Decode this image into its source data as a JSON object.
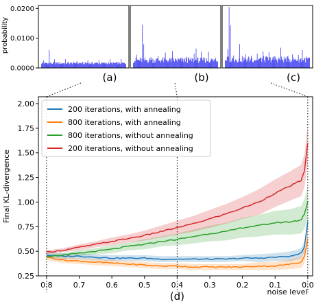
{
  "chart_data": [
    {
      "type": "bar",
      "panel": "(a)",
      "ylabel": "probability",
      "ylim": [
        0,
        0.021
      ],
      "yticks": [
        "0.0000",
        "0.0100",
        "0.0200"
      ],
      "color": "#3b3bef",
      "profile": "flat",
      "peak": 0.006,
      "base": 0.0012
    },
    {
      "type": "bar",
      "panel": "(b)",
      "ylim": [
        0,
        0.021
      ],
      "color": "#3b3bef",
      "profile": "moderate",
      "peak": 0.0145,
      "base": 0.0016
    },
    {
      "type": "bar",
      "panel": "(c)",
      "ylim": [
        0,
        0.021
      ],
      "color": "#3b3bef",
      "profile": "spiky",
      "peak": 0.0205,
      "base": 0.0018
    },
    {
      "type": "line",
      "panel": "(d)",
      "xlabel": "noise level",
      "ylabel": "Final KL-divergence",
      "xlim": [
        0.825,
        -0.015
      ],
      "ylim": [
        0.25,
        2.07
      ],
      "xticks": [
        "0.8",
        "0.7",
        "0.6",
        "0.5",
        "0.4",
        "0.3",
        "0.2",
        "0.1",
        "0.0"
      ],
      "yticks": [
        "0.25",
        "0.50",
        "0.75",
        "1.00",
        "1.25",
        "1.50",
        "1.75",
        "2.00"
      ],
      "legend_position": "top-left",
      "grid": false,
      "x": [
        0.8,
        0.75,
        0.7,
        0.65,
        0.6,
        0.55,
        0.5,
        0.45,
        0.4,
        0.35,
        0.3,
        0.25,
        0.2,
        0.15,
        0.1,
        0.05,
        0.02,
        0.01,
        0.0
      ],
      "series": [
        {
          "name": "200 iterations, with annealing",
          "color": "#1f77b4",
          "values": [
            0.46,
            0.45,
            0.45,
            0.44,
            0.43,
            0.43,
            0.43,
            0.42,
            0.42,
            0.42,
            0.42,
            0.42,
            0.43,
            0.43,
            0.44,
            0.45,
            0.48,
            0.55,
            0.8
          ],
          "band": [
            0.03,
            0.03,
            0.03,
            0.03,
            0.03,
            0.03,
            0.03,
            0.03,
            0.03,
            0.03,
            0.03,
            0.03,
            0.03,
            0.04,
            0.04,
            0.05,
            0.05,
            0.05,
            0.06
          ]
        },
        {
          "name": "800 iterations, with annealing",
          "color": "#ff7f0e",
          "values": [
            0.44,
            0.41,
            0.4,
            0.39,
            0.38,
            0.37,
            0.36,
            0.35,
            0.35,
            0.34,
            0.34,
            0.34,
            0.34,
            0.35,
            0.35,
            0.37,
            0.39,
            0.45,
            0.63
          ],
          "band": [
            0.03,
            0.03,
            0.03,
            0.03,
            0.03,
            0.03,
            0.03,
            0.03,
            0.03,
            0.03,
            0.03,
            0.03,
            0.03,
            0.04,
            0.04,
            0.05,
            0.06,
            0.07,
            0.07
          ]
        },
        {
          "name": "800 iterations, without annealing",
          "color": "#2ca02c",
          "values": [
            0.45,
            0.46,
            0.48,
            0.5,
            0.52,
            0.55,
            0.57,
            0.6,
            0.62,
            0.65,
            0.68,
            0.7,
            0.74,
            0.76,
            0.79,
            0.8,
            0.82,
            0.88,
            1.0
          ],
          "band": [
            0.02,
            0.02,
            0.03,
            0.03,
            0.04,
            0.04,
            0.05,
            0.05,
            0.06,
            0.07,
            0.08,
            0.09,
            0.1,
            0.11,
            0.12,
            0.13,
            0.14,
            0.15,
            0.16
          ]
        },
        {
          "name": "200 iterations, without annealing",
          "color": "#d62728",
          "values": [
            0.49,
            0.51,
            0.54,
            0.57,
            0.6,
            0.63,
            0.66,
            0.7,
            0.74,
            0.78,
            0.83,
            0.88,
            0.94,
            1.0,
            1.09,
            1.17,
            1.22,
            1.32,
            1.6
          ],
          "band": [
            0.02,
            0.02,
            0.03,
            0.03,
            0.04,
            0.04,
            0.05,
            0.06,
            0.07,
            0.08,
            0.09,
            0.1,
            0.11,
            0.13,
            0.14,
            0.15,
            0.16,
            0.17,
            0.19
          ]
        }
      ],
      "panel_label": "(d)",
      "vlines_at": [
        0.8,
        0.4,
        0.0
      ]
    }
  ]
}
